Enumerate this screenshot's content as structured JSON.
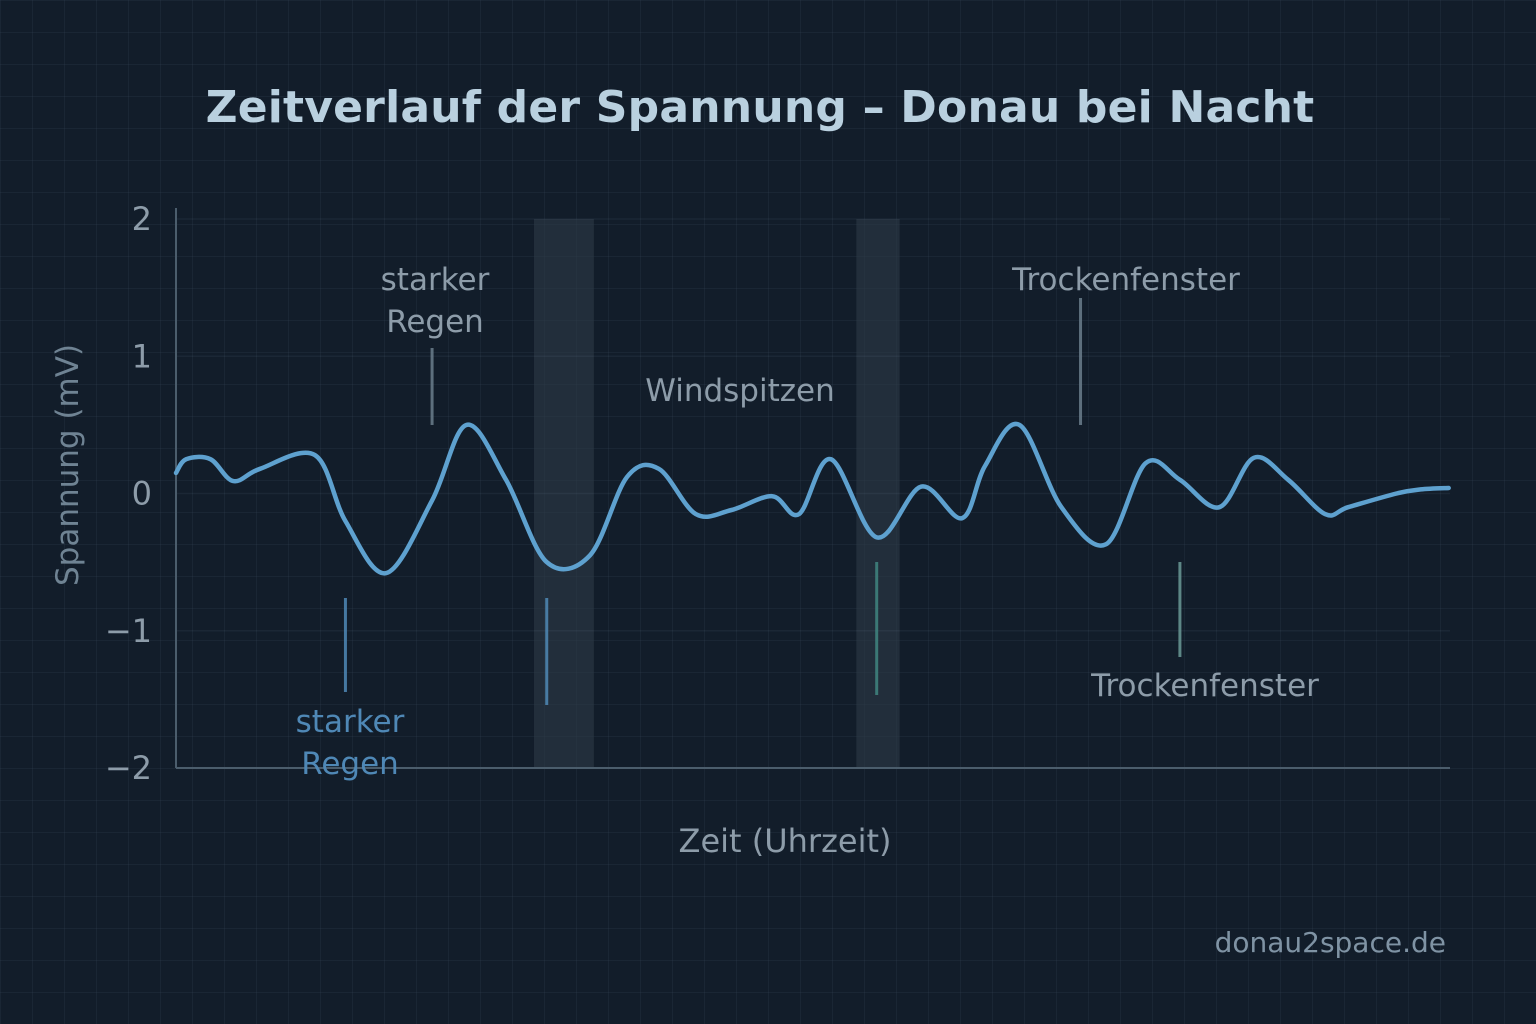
{
  "title": "Zeitverlauf der Spannung – Donau bei Nacht",
  "footer": "donau2space.de",
  "colors": {
    "background": "#121d2a",
    "line": "#5ea1cf",
    "title": "#b9d0df",
    "text_gray": "#8d9ca9",
    "text_blue": "#4f88b6",
    "teal": "#3f8580",
    "band": "#2f3d48"
  },
  "chart_data": {
    "type": "line",
    "title": "Zeitverlauf der Spannung – Donau bei Nacht",
    "xlabel": "Zeit (Uhrzeit)",
    "ylabel": "Spannung (mV)",
    "xlim": [
      0,
      100
    ],
    "ylim": [
      -2,
      2
    ],
    "yticks": [
      "2",
      "1",
      "0",
      "−1",
      "−2"
    ],
    "ytick_values": [
      2,
      1,
      0,
      -1,
      -2
    ],
    "grid": true,
    "x": [
      0,
      0.8,
      2.7,
      4.5,
      6.6,
      10.9,
      13.3,
      16.5,
      20.1,
      22.8,
      25.9,
      29.1,
      32.5,
      35.4,
      37.9,
      40.8,
      43.6,
      46.8,
      48.9,
      51.4,
      55.0,
      58.5,
      61.7,
      63.5,
      66.2,
      69.5,
      73.0,
      76.1,
      78.8,
      81.9,
      84.6,
      87.3,
      90.2,
      92.0,
      95.8,
      97.7,
      99.9
    ],
    "series": [
      {
        "values": [
          0.15,
          0.25,
          0.25,
          0.09,
          0.18,
          0.28,
          -0.2,
          -0.58,
          -0.05,
          0.5,
          0.1,
          -0.5,
          -0.45,
          0.12,
          0.18,
          -0.15,
          -0.12,
          -0.02,
          -0.15,
          0.25,
          -0.32,
          0.05,
          -0.18,
          0.2,
          0.5,
          -0.1,
          -0.37,
          0.22,
          0.1,
          -0.1,
          0.26,
          0.1,
          -0.15,
          -0.1,
          0.0,
          0.03,
          0.04
        ]
      }
    ],
    "shaded_regions": [
      [
        28.1,
        32.8
      ],
      [
        53.4,
        56.8
      ]
    ],
    "annotations": [
      {
        "text": "starker Regen",
        "lines": [
          "starker",
          "Regen"
        ],
        "x": 20.1,
        "side": "above",
        "color": "gray"
      },
      {
        "text": "starker Regen",
        "lines": [
          "starker",
          "Regen"
        ],
        "x": 13.3,
        "side": "below",
        "color": "blue"
      },
      {
        "text": "Windspitzen",
        "lines": [
          "Windspitzen"
        ],
        "x": 44.0,
        "side": "above",
        "color": "gray"
      },
      {
        "text": "Trockenfenster",
        "lines": [
          "Trockenfenster"
        ],
        "x": 71.0,
        "side": "above",
        "color": "gray"
      },
      {
        "text": "Trockenfenster",
        "lines": [
          "Trockenfenster"
        ],
        "x": 78.8,
        "side": "below",
        "color": "gray"
      }
    ]
  }
}
